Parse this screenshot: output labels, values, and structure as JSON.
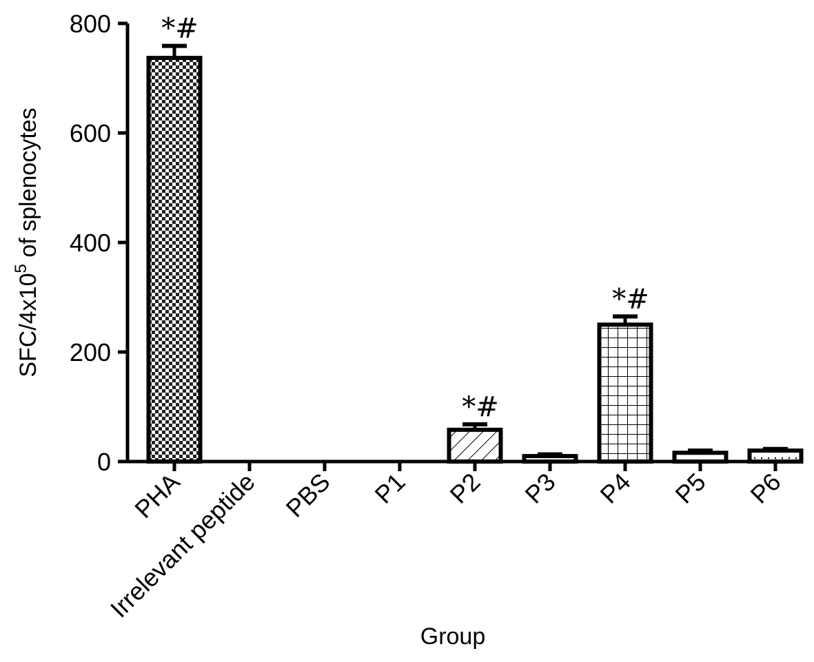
{
  "chart_data": {
    "type": "bar",
    "title": "",
    "xlabel": "Group",
    "ylabel": "SFC/4x10",
    "ylabel_superscript": "5",
    "ylabel_suffix": " of splenocytes",
    "ylim": [
      0,
      800
    ],
    "yticks": [
      0,
      200,
      400,
      600,
      800
    ],
    "ytick_labels": [
      "0",
      "200",
      "400",
      "600",
      "800"
    ],
    "grid": false,
    "legend": "none",
    "categories": [
      "PHA",
      "Irrelevant peptide",
      "PBS",
      "P1",
      "P2",
      "P3",
      "P4",
      "P5",
      "P6"
    ],
    "values": [
      737,
      0,
      0,
      0,
      58,
      10,
      250,
      16,
      20
    ],
    "errors": [
      22,
      0,
      0,
      0,
      10,
      3,
      15,
      4,
      3
    ],
    "annotations": [
      "*#",
      "",
      "",
      "",
      "*#",
      "",
      "*#",
      "",
      ""
    ],
    "patterns": [
      "checker",
      "none",
      "none",
      "none",
      "diagonal",
      "solid-white",
      "grid",
      "solid-white",
      "dots-white"
    ],
    "bar_stroke": "#000000",
    "bar_fill": "#ffffff"
  }
}
